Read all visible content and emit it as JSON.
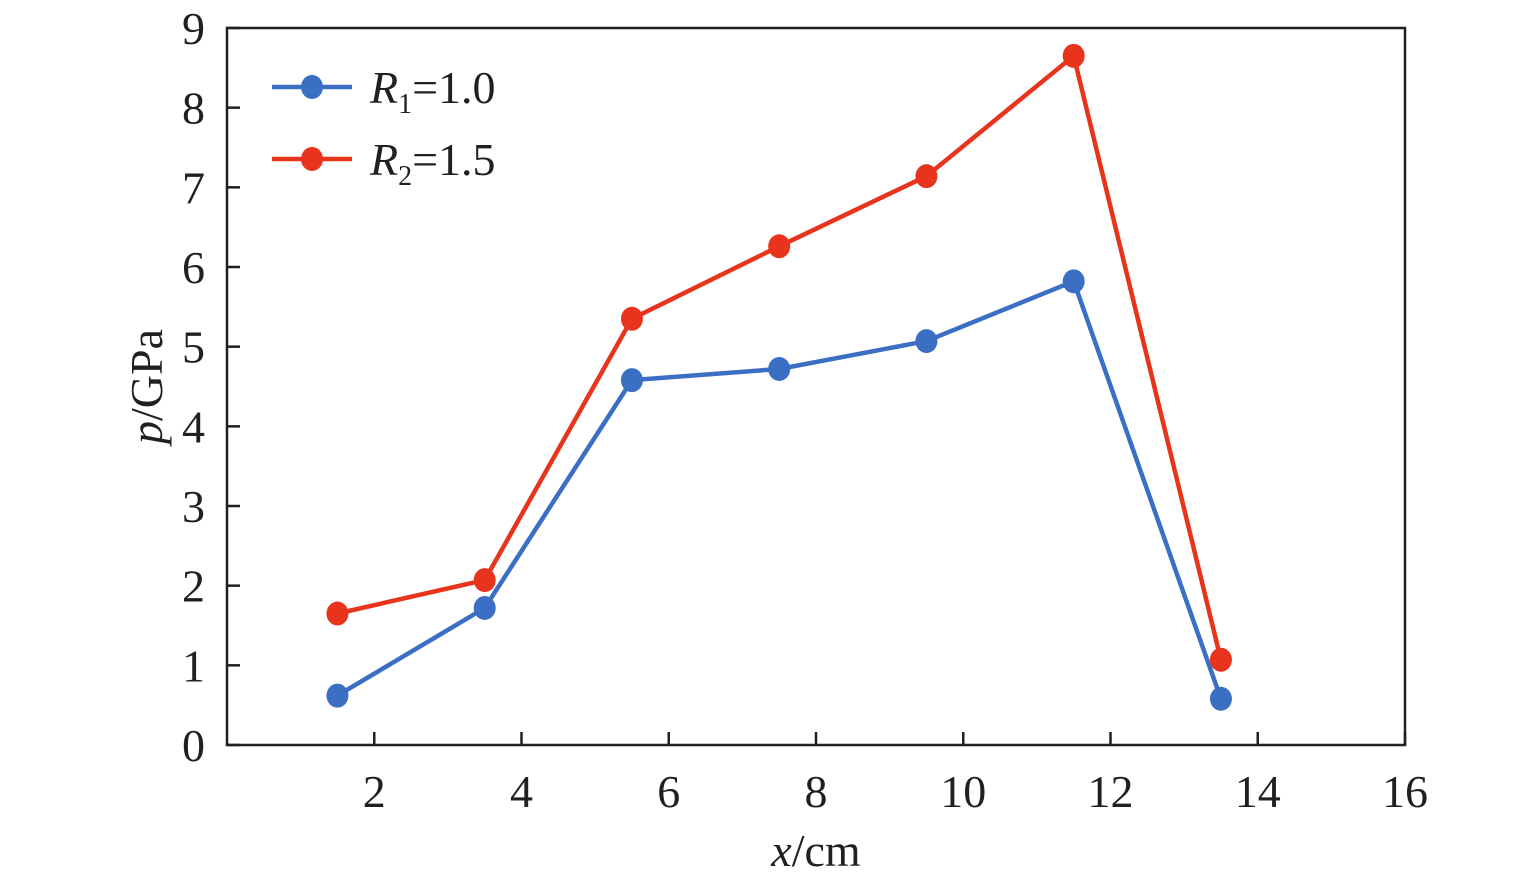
{
  "chart_data": {
    "type": "line",
    "title": "",
    "xlabel": {
      "var": "x",
      "unit": "/cm"
    },
    "ylabel": {
      "var": "p",
      "unit": "/GPa"
    },
    "xlim": [
      0,
      16
    ],
    "ylim": [
      0,
      9
    ],
    "xticks": [
      2,
      4,
      6,
      8,
      10,
      12,
      14,
      16
    ],
    "yticks": [
      0,
      1,
      2,
      3,
      4,
      5,
      6,
      7,
      8,
      9
    ],
    "grid": false,
    "legend_position": "top-left",
    "x": [
      1.5,
      3.5,
      5.5,
      7.5,
      9.5,
      11.5,
      13.5
    ],
    "series": [
      {
        "name": "R1=1.0",
        "symbol": "R",
        "subscript": "1",
        "value_text": "=1.0",
        "color": "#3a6fc4",
        "values": [
          0.62,
          1.72,
          4.58,
          4.72,
          5.07,
          5.82,
          0.58
        ]
      },
      {
        "name": "R2=1.5",
        "symbol": "R",
        "subscript": "2",
        "value_text": "=1.5",
        "color": "#e8341c",
        "values": [
          1.65,
          2.07,
          5.35,
          6.26,
          7.14,
          8.65,
          1.07
        ]
      }
    ]
  }
}
